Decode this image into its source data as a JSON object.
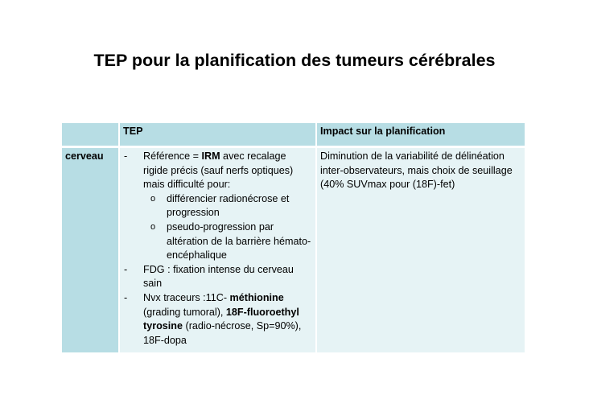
{
  "slide": {
    "title": "TEP pour la planification des tumeurs cérébrales"
  },
  "table": {
    "header": {
      "col1": "",
      "col2": "TEP",
      "col3": "Impact sur la planification"
    },
    "row": {
      "label": "cerveau",
      "tep": {
        "item1": {
          "bullet": "-",
          "pre": "Référence = ",
          "bold": "IRM",
          "post": " avec recalage rigide précis (sauf nerfs optiques) mais difficulté pour:",
          "subitems": [
            {
              "bullet": "o",
              "text": " différencier radionécrose et progression"
            },
            {
              "bullet": "o",
              "text": "pseudo-progression par altération de la barrière hémato-encéphalique"
            }
          ]
        },
        "item2": {
          "bullet": "-",
          "text": "FDG : fixation intense du cerveau sain"
        },
        "item3": {
          "bullet": "-",
          "pre": "Nvx traceurs :11C- ",
          "bold1": "méthionine",
          "mid": " (grading tumoral), ",
          "bold2": "18F-fluoroethyl tyrosine",
          "post": " (radio-nécrose, Sp=90%), 18F-dopa"
        }
      },
      "impact": "Diminution de la variabilité de délinéation inter-observateurs, mais choix de seuillage  (40% SUVmax pour (18F)-fet)"
    }
  }
}
